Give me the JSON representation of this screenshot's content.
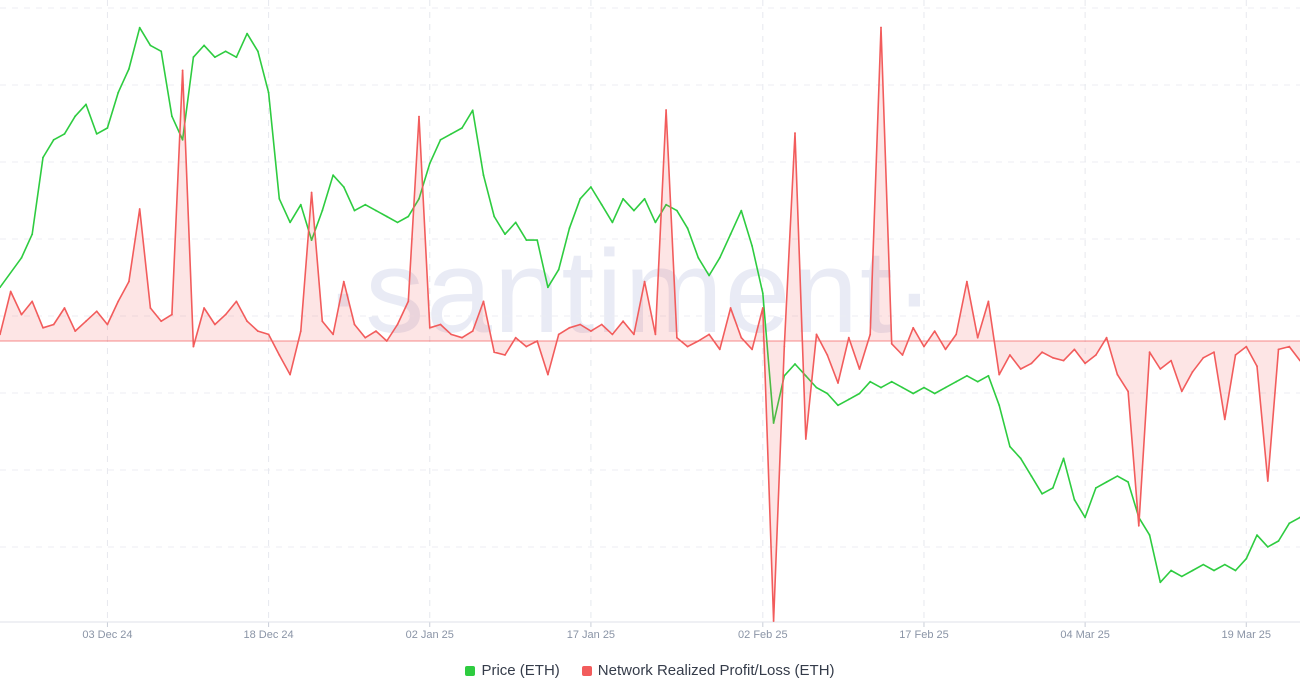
{
  "watermark": "·santiment·",
  "chart_data": {
    "type": "line",
    "x_start": "2024-11-23",
    "x_end": "2025-03-24",
    "x_ticks": [
      "03 Dec 24",
      "18 Dec 24",
      "02 Jan 25",
      "17 Jan 25",
      "02 Feb 25",
      "17 Feb 25",
      "04 Mar 25",
      "19 Mar 25"
    ],
    "grid": true,
    "legend_position": "bottom-center",
    "series": [
      {
        "name": "Price (ETH)",
        "color": "#2ecc40",
        "axis": "price",
        "points": [
          [
            "2024-11-23",
            0.53
          ],
          [
            "2024-11-25",
            0.58
          ],
          [
            "2024-11-26",
            0.62
          ],
          [
            "2024-11-27",
            0.75
          ],
          [
            "2024-11-28",
            0.78
          ],
          [
            "2024-11-29",
            0.79
          ],
          [
            "2024-11-30",
            0.82
          ],
          [
            "2024-12-01",
            0.84
          ],
          [
            "2024-12-02",
            0.79
          ],
          [
            "2024-12-03",
            0.8
          ],
          [
            "2024-12-04",
            0.86
          ],
          [
            "2024-12-05",
            0.9
          ],
          [
            "2024-12-06",
            0.97
          ],
          [
            "2024-12-07",
            0.94
          ],
          [
            "2024-12-08",
            0.93
          ],
          [
            "2024-12-09",
            0.82
          ],
          [
            "2024-12-10",
            0.78
          ],
          [
            "2024-12-11",
            0.92
          ],
          [
            "2024-12-12",
            0.94
          ],
          [
            "2024-12-13",
            0.92
          ],
          [
            "2024-12-14",
            0.93
          ],
          [
            "2024-12-15",
            0.92
          ],
          [
            "2024-12-16",
            0.96
          ],
          [
            "2024-12-17",
            0.93
          ],
          [
            "2024-12-18",
            0.86
          ],
          [
            "2024-12-19",
            0.68
          ],
          [
            "2024-12-20",
            0.64
          ],
          [
            "2024-12-21",
            0.67
          ],
          [
            "2024-12-22",
            0.61
          ],
          [
            "2024-12-23",
            0.66
          ],
          [
            "2024-12-24",
            0.72
          ],
          [
            "2024-12-25",
            0.7
          ],
          [
            "2024-12-26",
            0.66
          ],
          [
            "2024-12-27",
            0.67
          ],
          [
            "2024-12-28",
            0.66
          ],
          [
            "2024-12-29",
            0.65
          ],
          [
            "2024-12-30",
            0.64
          ],
          [
            "2024-12-31",
            0.65
          ],
          [
            "2025-01-01",
            0.68
          ],
          [
            "2025-01-02",
            0.74
          ],
          [
            "2025-01-03",
            0.78
          ],
          [
            "2025-01-04",
            0.79
          ],
          [
            "2025-01-05",
            0.8
          ],
          [
            "2025-01-06",
            0.83
          ],
          [
            "2025-01-07",
            0.72
          ],
          [
            "2025-01-08",
            0.65
          ],
          [
            "2025-01-09",
            0.62
          ],
          [
            "2025-01-10",
            0.64
          ],
          [
            "2025-01-11",
            0.61
          ],
          [
            "2025-01-12",
            0.61
          ],
          [
            "2025-01-13",
            0.53
          ],
          [
            "2025-01-14",
            0.56
          ],
          [
            "2025-01-15",
            0.63
          ],
          [
            "2025-01-16",
            0.68
          ],
          [
            "2025-01-17",
            0.7
          ],
          [
            "2025-01-18",
            0.67
          ],
          [
            "2025-01-19",
            0.64
          ],
          [
            "2025-01-20",
            0.68
          ],
          [
            "2025-01-21",
            0.66
          ],
          [
            "2025-01-22",
            0.68
          ],
          [
            "2025-01-23",
            0.64
          ],
          [
            "2025-01-24",
            0.67
          ],
          [
            "2025-01-25",
            0.66
          ],
          [
            "2025-01-26",
            0.63
          ],
          [
            "2025-01-27",
            0.58
          ],
          [
            "2025-01-28",
            0.55
          ],
          [
            "2025-01-29",
            0.58
          ],
          [
            "2025-01-30",
            0.62
          ],
          [
            "2025-01-31",
            0.66
          ],
          [
            "2025-02-01",
            0.6
          ],
          [
            "2025-02-02",
            0.52
          ],
          [
            "2025-02-03",
            0.3
          ],
          [
            "2025-02-04",
            0.38
          ],
          [
            "2025-02-05",
            0.4
          ],
          [
            "2025-02-06",
            0.38
          ],
          [
            "2025-02-07",
            0.36
          ],
          [
            "2025-02-08",
            0.35
          ],
          [
            "2025-02-09",
            0.33
          ],
          [
            "2025-02-10",
            0.34
          ],
          [
            "2025-02-11",
            0.35
          ],
          [
            "2025-02-12",
            0.37
          ],
          [
            "2025-02-13",
            0.36
          ],
          [
            "2025-02-14",
            0.37
          ],
          [
            "2025-02-15",
            0.36
          ],
          [
            "2025-02-16",
            0.35
          ],
          [
            "2025-02-17",
            0.36
          ],
          [
            "2025-02-18",
            0.35
          ],
          [
            "2025-02-19",
            0.36
          ],
          [
            "2025-02-20",
            0.37
          ],
          [
            "2025-02-21",
            0.38
          ],
          [
            "2025-02-22",
            0.37
          ],
          [
            "2025-02-23",
            0.38
          ],
          [
            "2025-02-24",
            0.33
          ],
          [
            "2025-02-25",
            0.26
          ],
          [
            "2025-02-26",
            0.24
          ],
          [
            "2025-02-27",
            0.21
          ],
          [
            "2025-02-28",
            0.18
          ],
          [
            "2025-03-01",
            0.19
          ],
          [
            "2025-03-02",
            0.24
          ],
          [
            "2025-03-03",
            0.17
          ],
          [
            "2025-03-04",
            0.14
          ],
          [
            "2025-03-05",
            0.19
          ],
          [
            "2025-03-06",
            0.2
          ],
          [
            "2025-03-07",
            0.21
          ],
          [
            "2025-03-08",
            0.2
          ],
          [
            "2025-03-09",
            0.14
          ],
          [
            "2025-03-10",
            0.11
          ],
          [
            "2025-03-11",
            0.03
          ],
          [
            "2025-03-12",
            0.05
          ],
          [
            "2025-03-13",
            0.04
          ],
          [
            "2025-03-14",
            0.05
          ],
          [
            "2025-03-15",
            0.06
          ],
          [
            "2025-03-16",
            0.05
          ],
          [
            "2025-03-17",
            0.06
          ],
          [
            "2025-03-18",
            0.05
          ],
          [
            "2025-03-19",
            0.07
          ],
          [
            "2025-03-20",
            0.11
          ],
          [
            "2025-03-21",
            0.09
          ],
          [
            "2025-03-22",
            0.1
          ],
          [
            "2025-03-23",
            0.13
          ],
          [
            "2025-03-24",
            0.14
          ]
        ]
      },
      {
        "name": "Network Realized Profit/Loss (ETH)",
        "color": "#f25c5c",
        "axis": "pnl",
        "baseline": 0,
        "points": [
          [
            "2024-11-23",
            0.02
          ],
          [
            "2024-11-24",
            0.15
          ],
          [
            "2024-11-25",
            0.08
          ],
          [
            "2024-11-26",
            0.12
          ],
          [
            "2024-11-27",
            0.04
          ],
          [
            "2024-11-28",
            0.05
          ],
          [
            "2024-11-29",
            0.1
          ],
          [
            "2024-11-30",
            0.03
          ],
          [
            "2024-12-01",
            0.06
          ],
          [
            "2024-12-02",
            0.09
          ],
          [
            "2024-12-03",
            0.05
          ],
          [
            "2024-12-04",
            0.12
          ],
          [
            "2024-12-05",
            0.18
          ],
          [
            "2024-12-06",
            0.4
          ],
          [
            "2024-12-07",
            0.1
          ],
          [
            "2024-12-08",
            0.06
          ],
          [
            "2024-12-09",
            0.08
          ],
          [
            "2024-12-10",
            0.82
          ],
          [
            "2024-12-11",
            -0.02
          ],
          [
            "2024-12-12",
            0.1
          ],
          [
            "2024-12-13",
            0.05
          ],
          [
            "2024-12-14",
            0.08
          ],
          [
            "2024-12-15",
            0.12
          ],
          [
            "2024-12-16",
            0.06
          ],
          [
            "2024-12-17",
            0.03
          ],
          [
            "2024-12-18",
            0.02
          ],
          [
            "2024-12-19",
            -0.05
          ],
          [
            "2024-12-20",
            -0.12
          ],
          [
            "2024-12-21",
            0.03
          ],
          [
            "2024-12-22",
            0.45
          ],
          [
            "2024-12-23",
            0.06
          ],
          [
            "2024-12-24",
            0.02
          ],
          [
            "2024-12-25",
            0.18
          ],
          [
            "2024-12-26",
            0.05
          ],
          [
            "2024-12-27",
            0.01
          ],
          [
            "2024-12-28",
            0.03
          ],
          [
            "2024-12-29",
            0.0
          ],
          [
            "2024-12-30",
            0.05
          ],
          [
            "2024-12-31",
            0.12
          ],
          [
            "2025-01-01",
            0.68
          ],
          [
            "2025-01-02",
            0.04
          ],
          [
            "2025-01-03",
            0.05
          ],
          [
            "2025-01-04",
            0.02
          ],
          [
            "2025-01-05",
            0.01
          ],
          [
            "2025-01-06",
            0.03
          ],
          [
            "2025-01-07",
            0.12
          ],
          [
            "2025-01-08",
            -0.04
          ],
          [
            "2025-01-09",
            -0.05
          ],
          [
            "2025-01-10",
            0.01
          ],
          [
            "2025-01-11",
            -0.02
          ],
          [
            "2025-01-12",
            0.0
          ],
          [
            "2025-01-13",
            -0.12
          ],
          [
            "2025-01-14",
            0.02
          ],
          [
            "2025-01-15",
            0.04
          ],
          [
            "2025-01-16",
            0.05
          ],
          [
            "2025-01-17",
            0.03
          ],
          [
            "2025-01-18",
            0.05
          ],
          [
            "2025-01-19",
            0.02
          ],
          [
            "2025-01-20",
            0.06
          ],
          [
            "2025-01-21",
            0.02
          ],
          [
            "2025-01-22",
            0.18
          ],
          [
            "2025-01-23",
            0.02
          ],
          [
            "2025-01-24",
            0.7
          ],
          [
            "2025-01-25",
            0.01
          ],
          [
            "2025-01-26",
            -0.02
          ],
          [
            "2025-01-27",
            0.0
          ],
          [
            "2025-01-28",
            0.02
          ],
          [
            "2025-01-29",
            -0.03
          ],
          [
            "2025-01-30",
            0.1
          ],
          [
            "2025-01-31",
            0.01
          ],
          [
            "2025-02-01",
            -0.03
          ],
          [
            "2025-02-02",
            0.1
          ],
          [
            "2025-02-03",
            -1.0
          ],
          [
            "2025-02-04",
            -0.02
          ],
          [
            "2025-02-05",
            0.63
          ],
          [
            "2025-02-06",
            -0.35
          ],
          [
            "2025-02-07",
            0.02
          ],
          [
            "2025-02-08",
            -0.05
          ],
          [
            "2025-02-09",
            -0.15
          ],
          [
            "2025-02-10",
            0.01
          ],
          [
            "2025-02-11",
            -0.1
          ],
          [
            "2025-02-12",
            0.02
          ],
          [
            "2025-02-13",
            0.95
          ],
          [
            "2025-02-14",
            -0.01
          ],
          [
            "2025-02-15",
            -0.05
          ],
          [
            "2025-02-16",
            0.04
          ],
          [
            "2025-02-17",
            -0.02
          ],
          [
            "2025-02-18",
            0.03
          ],
          [
            "2025-02-19",
            -0.03
          ],
          [
            "2025-02-20",
            0.02
          ],
          [
            "2025-02-21",
            0.18
          ],
          [
            "2025-02-22",
            0.01
          ],
          [
            "2025-02-23",
            0.12
          ],
          [
            "2025-02-24",
            -0.12
          ],
          [
            "2025-02-25",
            -0.05
          ],
          [
            "2025-02-26",
            -0.1
          ],
          [
            "2025-02-27",
            -0.08
          ],
          [
            "2025-02-28",
            -0.04
          ],
          [
            "2025-03-01",
            -0.06
          ],
          [
            "2025-03-02",
            -0.07
          ],
          [
            "2025-03-03",
            -0.03
          ],
          [
            "2025-03-04",
            -0.08
          ],
          [
            "2025-03-05",
            -0.05
          ],
          [
            "2025-03-06",
            0.01
          ],
          [
            "2025-03-07",
            -0.12
          ],
          [
            "2025-03-08",
            -0.18
          ],
          [
            "2025-03-09",
            -0.66
          ],
          [
            "2025-03-10",
            -0.04
          ],
          [
            "2025-03-11",
            -0.1
          ],
          [
            "2025-03-12",
            -0.07
          ],
          [
            "2025-03-13",
            -0.18
          ],
          [
            "2025-03-14",
            -0.11
          ],
          [
            "2025-03-15",
            -0.06
          ],
          [
            "2025-03-16",
            -0.04
          ],
          [
            "2025-03-17",
            -0.28
          ],
          [
            "2025-03-18",
            -0.05
          ],
          [
            "2025-03-19",
            -0.02
          ],
          [
            "2025-03-20",
            -0.09
          ],
          [
            "2025-03-21",
            -0.5
          ],
          [
            "2025-03-22",
            -0.03
          ],
          [
            "2025-03-23",
            -0.02
          ],
          [
            "2025-03-24",
            -0.07
          ]
        ]
      }
    ]
  }
}
